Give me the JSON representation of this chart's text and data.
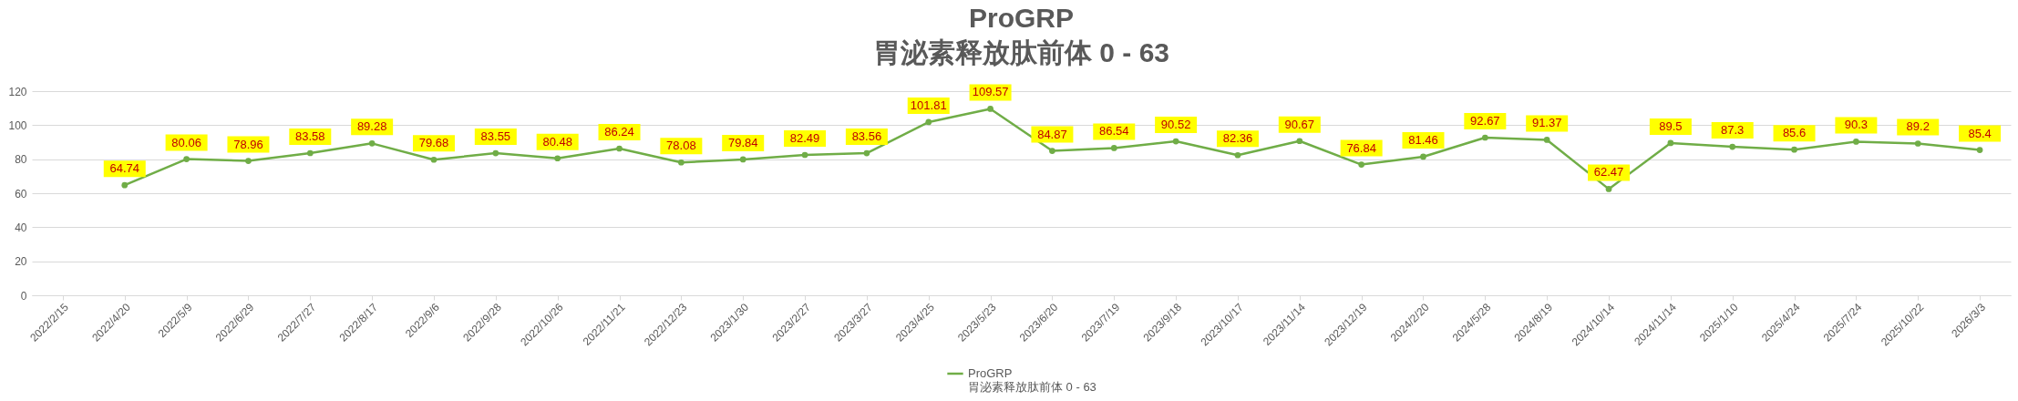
{
  "chart_data": {
    "type": "line",
    "title": "ProGRP",
    "subtitle": "胃泌素释放肽前体 0 - 63",
    "categories": [
      "2022/2/15",
      "2022/4/20",
      "2022/5/9",
      "2022/6/29",
      "2022/7/27",
      "2022/8/17",
      "2022/9/6",
      "2022/9/28",
      "2022/10/26",
      "2022/11/21",
      "2022/12/23",
      "2023/1/30",
      "2023/2/27",
      "2023/3/27",
      "2023/4/25",
      "2023/5/23",
      "2023/6/20",
      "2023/7/19",
      "2023/9/18",
      "2023/10/17",
      "2023/11/14",
      "2023/12/19",
      "2024/2/20",
      "2024/5/28",
      "2024/8/19",
      "2024/10/14",
      "2024/11/14",
      "2025/1/10",
      "2025/4/24",
      "2025/7/24",
      "2025/10/22",
      "2026/3/3"
    ],
    "series": [
      {
        "name": "ProGRP\n胃泌素释放肽前体 0 - 63",
        "color": "#70ad47",
        "values": [
          null,
          64.74,
          80.06,
          78.96,
          83.58,
          89.28,
          79.68,
          83.55,
          80.48,
          86.24,
          78.08,
          79.84,
          82.49,
          83.56,
          101.81,
          109.57,
          84.87,
          86.54,
          90.52,
          82.36,
          90.67,
          76.84,
          81.46,
          92.67,
          91.37,
          62.47,
          89.5,
          87.3,
          85.6,
          90.3,
          89.2,
          85.4
        ]
      }
    ],
    "ylim": [
      0,
      120
    ],
    "yticks": [
      0,
      20,
      40,
      60,
      80,
      100,
      120
    ],
    "grid": "y",
    "legend": "bottom",
    "marker": "circle",
    "line_style": "solid",
    "data_labels": true
  }
}
